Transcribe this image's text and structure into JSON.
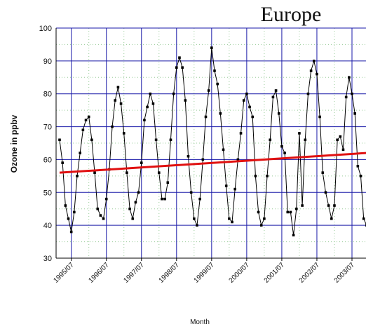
{
  "chart_data": {
    "type": "line",
    "title": "Europe",
    "x_label": "Month",
    "y_label": "Ozone in ppbv",
    "categories": [
      null,
      null,
      null,
      null,
      "1995/07",
      null,
      null,
      null,
      null,
      null,
      null,
      null,
      null,
      null,
      null,
      null,
      "1996/07",
      null,
      null,
      null,
      null,
      null,
      null,
      null,
      null,
      null,
      null,
      null,
      "1997/07",
      null,
      null,
      null,
      null,
      null,
      null,
      null,
      null,
      null,
      null,
      null,
      "1998/07",
      null,
      null,
      null,
      null,
      null,
      null,
      null,
      null,
      null,
      null,
      null,
      "1999/07",
      null,
      null,
      null,
      null,
      null,
      null,
      null,
      null,
      null,
      null,
      null,
      "2000/07",
      null,
      null,
      null,
      null,
      null,
      null,
      null,
      null,
      null,
      null,
      null,
      "2001/07",
      null,
      null,
      null,
      null,
      null,
      null,
      null,
      null,
      null,
      null,
      null,
      "2002/07",
      null,
      null,
      null,
      null,
      null,
      null,
      null,
      null,
      null,
      null,
      null,
      "2003/07",
      null,
      null,
      null,
      null,
      null
    ],
    "series": [
      {
        "color": "#000000",
        "values": [
          66,
          59,
          46,
          42,
          38,
          44,
          55,
          62,
          69,
          72,
          73,
          66,
          56,
          45,
          43,
          42,
          48,
          57,
          70,
          78,
          82,
          77,
          68,
          56,
          45,
          42,
          47,
          50,
          59,
          72,
          76,
          80,
          77,
          66,
          56,
          48,
          48,
          53,
          66,
          80,
          88,
          91,
          88,
          78,
          61,
          50,
          42,
          40,
          48,
          60,
          73,
          81,
          94,
          87,
          83,
          74,
          63,
          52,
          42,
          41,
          51,
          60,
          68,
          78,
          80,
          76,
          73,
          55,
          44,
          40,
          42,
          55,
          66,
          79,
          81,
          74,
          64,
          62,
          44,
          44,
          37,
          45,
          68,
          46,
          66,
          80,
          87,
          90,
          86,
          73,
          56,
          50,
          46,
          42,
          46,
          66,
          67,
          63,
          79,
          85,
          80,
          74,
          58,
          55,
          42,
          40
        ]
      }
    ],
    "trend_line": {
      "color": "#e01010",
      "values": [
        56,
        62
      ]
    },
    "ylim": [
      30,
      100
    ],
    "yticks": [
      30,
      40,
      50,
      60,
      70,
      80,
      90,
      100
    ],
    "grid": true
  }
}
